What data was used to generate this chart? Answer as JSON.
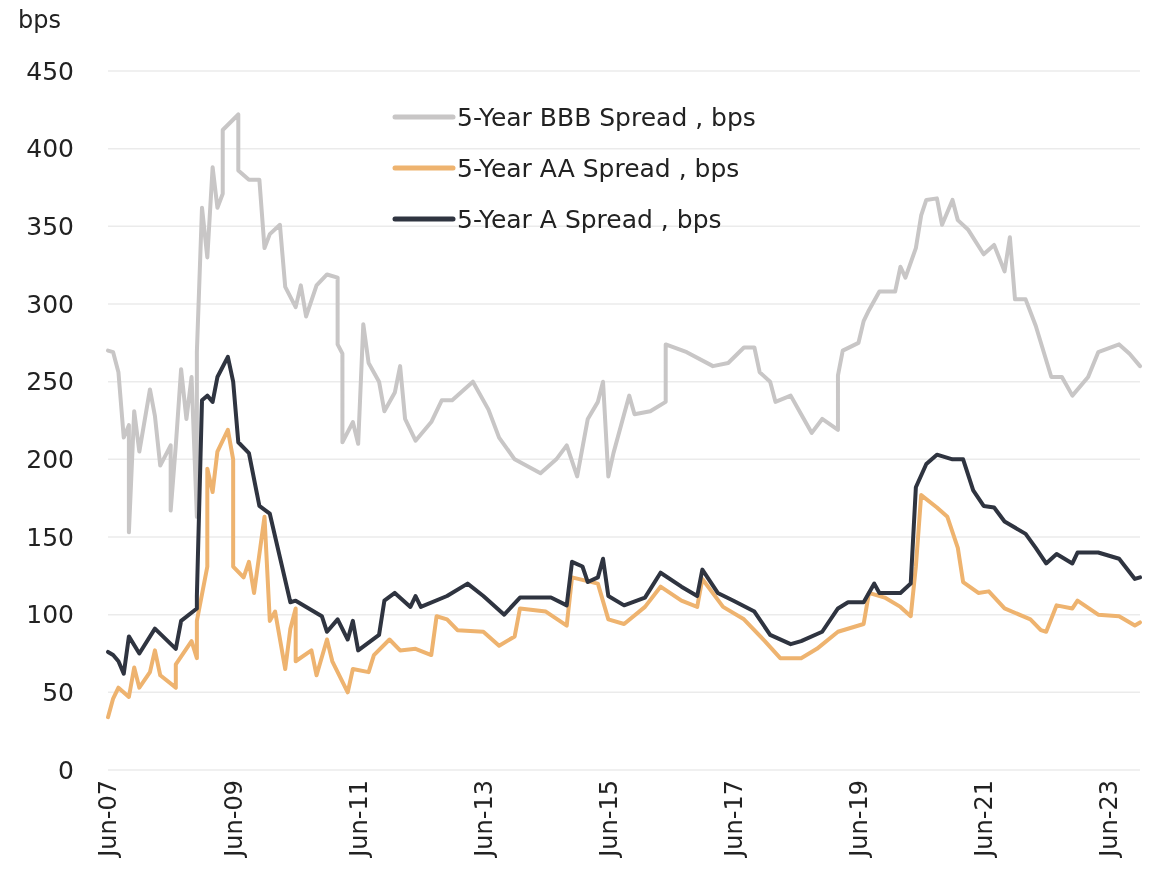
{
  "chart_data": {
    "type": "line",
    "ylabel": "bps",
    "xlim": [
      "2007-06",
      "2023-12"
    ],
    "xticks": [
      {
        "value": "2007-06",
        "label": "Jun-07"
      },
      {
        "value": "2009-06",
        "label": "Jun-09"
      },
      {
        "value": "2011-06",
        "label": "Jun-11"
      },
      {
        "value": "2013-06",
        "label": "Jun-13"
      },
      {
        "value": "2015-06",
        "label": "Jun-15"
      },
      {
        "value": "2017-06",
        "label": "Jun-17"
      },
      {
        "value": "2019-06",
        "label": "Jun-19"
      },
      {
        "value": "2021-06",
        "label": "Jun-21"
      },
      {
        "value": "2023-06",
        "label": "Jun-23"
      }
    ],
    "ylim": [
      0,
      450
    ],
    "yticks": [
      0,
      50,
      100,
      150,
      200,
      250,
      300,
      350,
      400,
      450
    ],
    "grid": "y",
    "legend": "top",
    "marker": "none",
    "line_style": "solid",
    "series": [
      {
        "name": "5-Year BBB Spread , bps",
        "color": "#c8c6c6",
        "x": [
          "2007-06",
          "2007-07",
          "2007-08",
          "2007-09",
          "2007-10",
          "2007-10",
          "2007-11",
          "2007-12",
          "2008-02",
          "2008-03",
          "2008-04",
          "2008-06",
          "2008-06",
          "2008-07",
          "2008-08",
          "2008-09",
          "2008-10",
          "2008-11",
          "2008-11",
          "2008-12",
          "2009-01",
          "2009-02",
          "2009-03",
          "2009-04",
          "2009-04",
          "2009-07",
          "2009-07",
          "2009-09",
          "2009-11",
          "2009-12",
          "2010-01",
          "2010-03",
          "2010-04",
          "2010-06",
          "2010-07",
          "2010-08",
          "2010-10",
          "2010-12",
          "2011-02",
          "2011-02",
          "2011-03",
          "2011-03",
          "2011-05",
          "2011-06",
          "2011-07",
          "2011-08",
          "2011-10",
          "2011-11",
          "2012-01",
          "2012-02",
          "2012-03",
          "2012-05",
          "2012-08",
          "2012-10",
          "2012-12",
          "2013-04",
          "2013-07",
          "2013-09",
          "2013-12",
          "2014-05",
          "2014-08",
          "2014-10",
          "2014-12",
          "2015-02",
          "2015-04",
          "2015-05",
          "2015-06",
          "2015-07",
          "2015-09",
          "2015-10",
          "2015-11",
          "2016-02",
          "2016-05",
          "2016-05",
          "2016-09",
          "2017-02",
          "2017-05",
          "2017-08",
          "2017-10",
          "2017-11",
          "2018-01",
          "2018-02",
          "2018-05",
          "2018-07",
          "2018-09",
          "2018-11",
          "2019-02",
          "2019-02",
          "2019-03",
          "2019-06",
          "2019-07",
          "2019-08",
          "2019-10",
          "2020-01",
          "2020-02",
          "2020-03",
          "2020-05",
          "2020-06",
          "2020-07",
          "2020-09",
          "2020-10",
          "2020-12",
          "2021-01",
          "2021-03",
          "2021-06",
          "2021-08",
          "2021-10",
          "2021-11",
          "2021-12",
          "2022-02",
          "2022-04",
          "2022-07",
          "2022-09",
          "2022-11",
          "2023-02",
          "2023-04",
          "2023-08",
          "2023-10",
          "2023-12"
        ],
        "values": [
          270,
          269,
          256,
          214,
          222,
          153,
          231,
          205,
          245,
          228,
          196,
          209,
          167,
          209,
          258,
          226,
          253,
          163,
          269,
          362,
          330,
          388,
          362,
          371,
          412,
          422,
          386,
          380,
          380,
          336,
          345,
          351,
          311,
          298,
          312,
          292,
          312,
          319,
          317,
          274,
          268,
          211,
          224,
          210,
          287,
          262,
          250,
          231,
          243,
          260,
          226,
          212,
          224,
          238,
          238,
          250,
          232,
          214,
          200,
          191,
          200,
          209,
          189,
          226,
          237,
          250,
          189,
          204,
          229,
          241,
          229,
          231,
          237,
          274,
          269,
          260,
          262,
          272,
          272,
          256,
          250,
          237,
          241,
          229,
          217,
          226,
          219,
          254,
          270,
          275,
          289,
          296,
          308,
          308,
          324,
          317,
          336,
          357,
          367,
          368,
          351,
          367,
          354,
          348,
          332,
          338,
          321,
          343,
          303,
          303,
          286,
          253,
          253,
          241,
          253,
          269,
          274,
          268,
          260
        ]
      },
      {
        "name": "5-Year AA Spread , bps",
        "color": "#eeb36f",
        "x": [
          "2007-06",
          "2007-07",
          "2007-08",
          "2007-10",
          "2007-11",
          "2007-12",
          "2008-02",
          "2008-03",
          "2008-04",
          "2008-07",
          "2008-07",
          "2008-10",
          "2008-11",
          "2008-11",
          "2009-01",
          "2009-01",
          "2009-02",
          "2009-03",
          "2009-05",
          "2009-06",
          "2009-06",
          "2009-08",
          "2009-09",
          "2009-10",
          "2009-12",
          "2010-01",
          "2010-02",
          "2010-04",
          "2010-05",
          "2010-06",
          "2010-06",
          "2010-09",
          "2010-10",
          "2010-12",
          "2011-01",
          "2011-04",
          "2011-05",
          "2011-08",
          "2011-09",
          "2011-12",
          "2012-02",
          "2012-05",
          "2012-08",
          "2012-09",
          "2012-11",
          "2013-01",
          "2013-06",
          "2013-09",
          "2013-12",
          "2014-01",
          "2014-06",
          "2014-10",
          "2014-11",
          "2015-04",
          "2015-06",
          "2015-09",
          "2016-01",
          "2016-04",
          "2016-08",
          "2016-11",
          "2016-12",
          "2017-04",
          "2017-08",
          "2017-12",
          "2018-03",
          "2018-07",
          "2018-10",
          "2019-02",
          "2019-07",
          "2019-08",
          "2019-11",
          "2020-02",
          "2020-04",
          "2020-05",
          "2020-06",
          "2020-09",
          "2020-11",
          "2021-01",
          "2021-02",
          "2021-05",
          "2021-07",
          "2021-10",
          "2022-03",
          "2022-05",
          "2022-06",
          "2022-08",
          "2022-11",
          "2022-12",
          "2023-04",
          "2023-08",
          "2023-11",
          "2023-12"
        ],
        "values": [
          34,
          46,
          53,
          47,
          66,
          53,
          63,
          77,
          61,
          53,
          68,
          83,
          72,
          96,
          131,
          194,
          179,
          205,
          219,
          200,
          131,
          124,
          134,
          114,
          163,
          96,
          102,
          65,
          91,
          104,
          70,
          77,
          61,
          84,
          70,
          50,
          65,
          63,
          74,
          84,
          77,
          78,
          74,
          99,
          97,
          90,
          89,
          80,
          86,
          104,
          102,
          93,
          124,
          120,
          97,
          94,
          105,
          118,
          109,
          105,
          123,
          105,
          97,
          83,
          72,
          72,
          78,
          89,
          94,
          114,
          111,
          105,
          99,
          131,
          177,
          169,
          163,
          143,
          121,
          114,
          115,
          104,
          97,
          90,
          89,
          106,
          104,
          109,
          100,
          99,
          93,
          95
        ]
      },
      {
        "name": "5-Year A Spread , bps",
        "color": "#2f3440",
        "x": [
          "2007-06",
          "2007-07",
          "2007-08",
          "2007-09",
          "2007-10",
          "2007-12",
          "2008-03",
          "2008-07",
          "2008-08",
          "2008-11",
          "2008-11",
          "2008-12",
          "2009-01",
          "2009-02",
          "2009-03",
          "2009-05",
          "2009-06",
          "2009-07",
          "2009-09",
          "2009-11",
          "2010-01",
          "2010-03",
          "2010-05",
          "2010-06",
          "2010-11",
          "2010-12",
          "2011-02",
          "2011-04",
          "2011-05",
          "2011-06",
          "2011-10",
          "2011-11",
          "2012-01",
          "2012-04",
          "2012-05",
          "2012-06",
          "2012-11",
          "2013-03",
          "2013-06",
          "2013-10",
          "2014-01",
          "2014-07",
          "2014-10",
          "2014-11",
          "2015-01",
          "2015-02",
          "2015-04",
          "2015-05",
          "2015-06",
          "2015-09",
          "2016-01",
          "2016-04",
          "2016-08",
          "2016-11",
          "2016-12",
          "2017-03",
          "2017-06",
          "2017-10",
          "2018-01",
          "2018-05",
          "2018-07",
          "2018-11",
          "2019-02",
          "2019-04",
          "2019-07",
          "2019-09",
          "2019-10",
          "2020-02",
          "2020-04",
          "2020-05",
          "2020-07",
          "2020-09",
          "2020-12",
          "2021-02",
          "2021-04",
          "2021-06",
          "2021-08",
          "2021-10",
          "2022-02",
          "2022-04",
          "2022-06",
          "2022-08",
          "2022-11",
          "2022-12",
          "2023-04",
          "2023-08",
          "2023-11",
          "2023-12"
        ],
        "values": [
          76,
          74,
          70,
          62,
          86,
          75,
          91,
          78,
          96,
          104,
          112,
          238,
          241,
          237,
          253,
          266,
          250,
          211,
          204,
          170,
          165,
          137,
          108,
          109,
          99,
          89,
          97,
          84,
          96,
          77,
          87,
          109,
          114,
          105,
          112,
          105,
          112,
          120,
          112,
          100,
          111,
          111,
          106,
          134,
          131,
          121,
          124,
          136,
          112,
          106,
          111,
          127,
          118,
          112,
          129,
          114,
          109,
          102,
          87,
          81,
          83,
          89,
          104,
          108,
          108,
          120,
          114,
          114,
          120,
          182,
          197,
          203,
          200,
          200,
          180,
          170,
          169,
          160,
          152,
          143,
          133,
          139,
          133,
          140,
          140,
          136,
          123,
          124
        ]
      }
    ]
  }
}
